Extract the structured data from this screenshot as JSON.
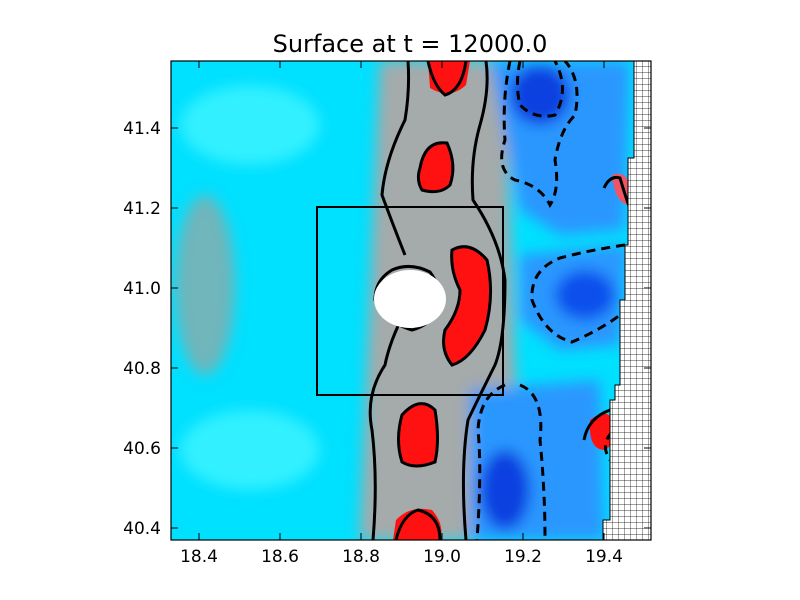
{
  "chart_data": {
    "type": "heatmap",
    "title": "Surface at t =  12000.0",
    "xlabel": "",
    "ylabel": "",
    "xlim": [
      18.33,
      19.52
    ],
    "ylim": [
      40.37,
      41.57
    ],
    "x_ticks": [
      "18.4",
      "18.6",
      "18.8",
      "19.0",
      "19.2",
      "19.4"
    ],
    "y_ticks": [
      "40.4",
      "40.6",
      "40.8",
      "41.0",
      "41.2",
      "41.4"
    ],
    "grid": false,
    "legend": "none",
    "colormap": {
      "negative_strong": "#0022dd",
      "negative": "#1f8fff",
      "background": "#00e0ff",
      "neutral": "#9aaaaa",
      "positive": "#ff1010"
    },
    "contour_solid_color": "#000000",
    "contour_dashed_color": "#000000",
    "annotations": {
      "inner_box": {
        "x": [
          18.695,
          19.155
        ],
        "y": [
          40.735,
          41.205
        ]
      },
      "island_center": [
        18.935,
        40.975
      ],
      "island_radii": [
        0.075,
        0.065
      ],
      "land_region": "gridded land along right edge, x from about 19.47 to 19.52"
    }
  }
}
